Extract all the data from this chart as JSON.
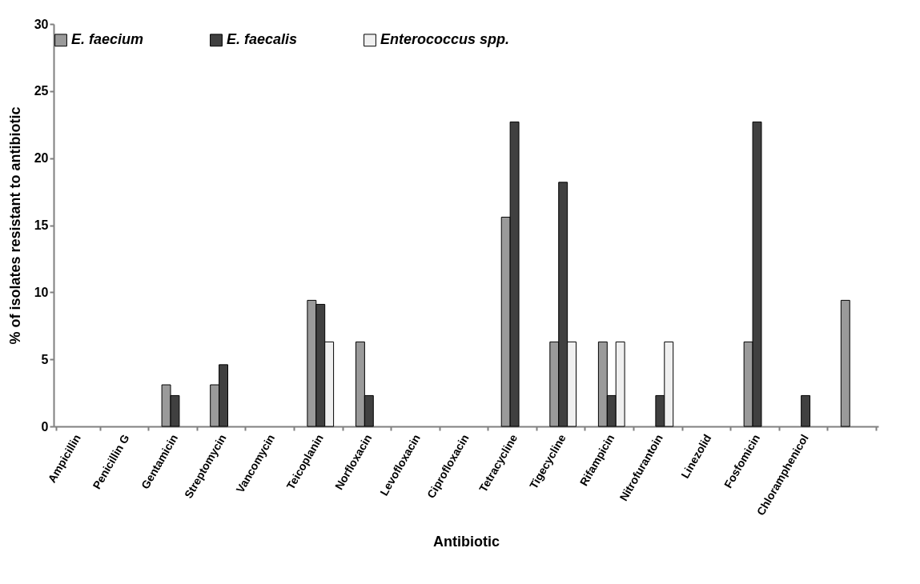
{
  "chart_data": {
    "type": "bar",
    "xlabel": "Antibiotic",
    "ylabel": "% of isolates resistant to antibiotic",
    "categories": [
      "Ampicillin",
      "Penicillin G",
      "Gentamicin",
      "Streptomycin",
      "Vancomycin",
      "Teicoplanin",
      "Norfloxacin",
      "Levofloxacin",
      "Ciprofloxacin",
      "Tetracycline",
      "Tigecycline",
      "Rifampicin",
      "Nitrofurantoin",
      "Linezolid",
      "Fosfomicin",
      "Chloramphenicol",
      null
    ],
    "series": [
      {
        "name": "E. faecium",
        "color": "#9a9a9a",
        "values": [
          0,
          0,
          3.1,
          3.1,
          0,
          9.4,
          6.3,
          0,
          0,
          15.6,
          6.3,
          6.3,
          0,
          0,
          6.3,
          0,
          9.4
        ]
      },
      {
        "name": "E. faecalis",
        "color": "#404040",
        "values": [
          0,
          0,
          2.3,
          4.6,
          0,
          9.1,
          2.3,
          0,
          0,
          22.7,
          18.2,
          2.3,
          2.3,
          0,
          22.7,
          2.3,
          0
        ]
      },
      {
        "name": "Enterococcus spp.",
        "color": "#f0f0f0",
        "values": [
          0,
          0,
          0,
          0,
          0,
          6.3,
          0,
          0,
          0,
          0,
          6.3,
          6.3,
          6.3,
          0,
          0,
          0,
          0
        ]
      }
    ],
    "ylim": [
      0,
      30
    ],
    "yticks": [
      0,
      5,
      10,
      15,
      20,
      25,
      30
    ],
    "grid": false,
    "legend": "top"
  }
}
